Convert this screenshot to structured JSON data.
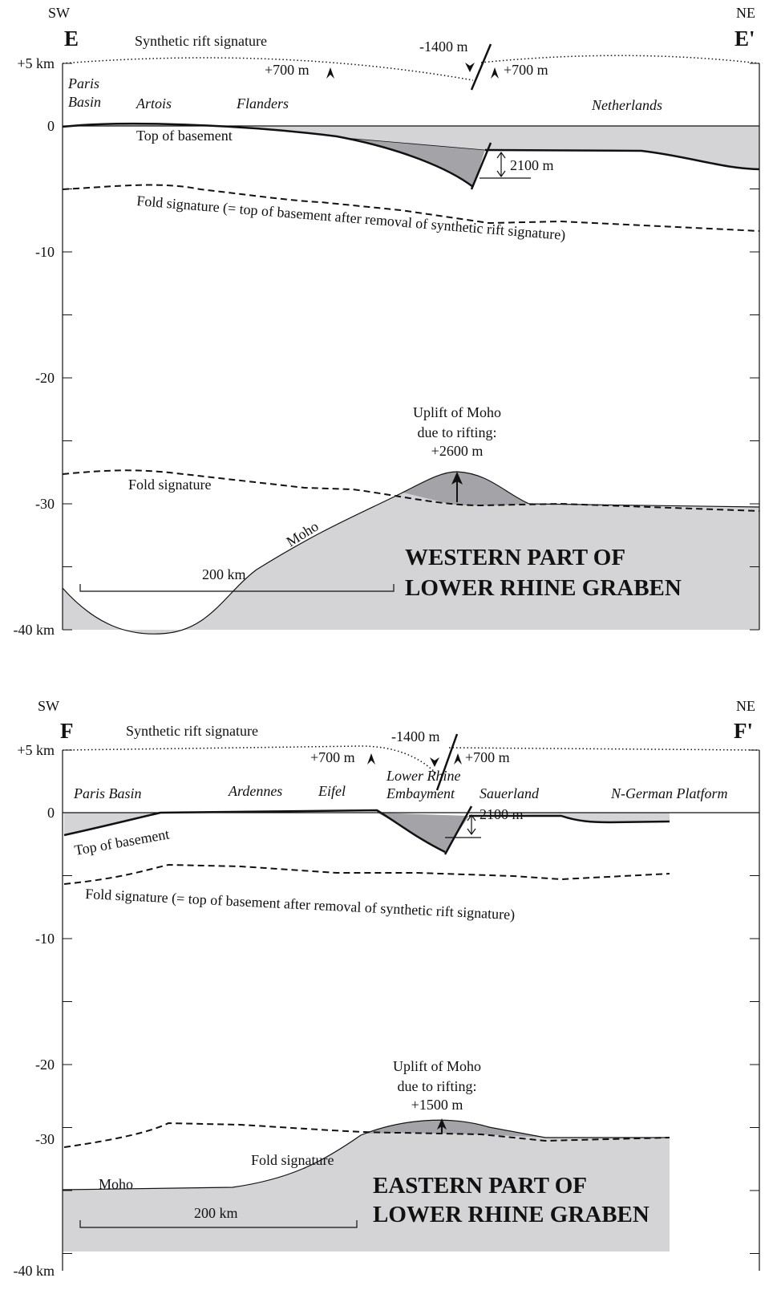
{
  "panels": [
    {
      "sw": "SW",
      "ne": "NE",
      "start": "E",
      "end": "E'",
      "depth_ticks": [
        "+5 km",
        "0",
        "-10",
        "-20",
        "-30",
        "-40 km"
      ],
      "regions": [
        [
          "Paris",
          "Basin"
        ],
        [
          "Artois"
        ],
        [
          "Flanders"
        ],
        [
          "Netherlands"
        ]
      ],
      "rift_label": "Synthetic rift signature",
      "fault_throw": "-1400 m",
      "uplift_left": "+700 m",
      "uplift_right": "+700 m",
      "basement_label": "Top of basement",
      "basement_offset": "2100 m",
      "upper_fold_label": "Fold signature (= top of basement after removal of synthetic rift signature)",
      "moho_uplift": [
        "Uplift of Moho",
        "due to rifting:",
        "+2600 m"
      ],
      "lower_fold_label": "Fold signature",
      "moho_label": "Moho",
      "scale_label": "200 km",
      "title": [
        "WESTERN PART OF",
        "LOWER RHINE GRABEN"
      ]
    },
    {
      "sw": "SW",
      "ne": "NE",
      "start": "F",
      "end": "F'",
      "depth_ticks": [
        "+5 km",
        "0",
        "-10",
        "-20",
        "-30",
        "-40 km"
      ],
      "regions": [
        [
          "Paris Basin"
        ],
        [
          "Ardennes"
        ],
        [
          "Eifel"
        ],
        [
          "Lower Rhine",
          "Embayment"
        ],
        [
          "Sauerland"
        ],
        [
          "N-German Platform"
        ]
      ],
      "rift_label": "Synthetic rift signature",
      "fault_throw": "-1400 m",
      "uplift_left": "+700 m",
      "uplift_right": "+700 m",
      "basement_label": "Top of basement",
      "basement_offset": "2100 m",
      "upper_fold_label": "Fold signature (= top of basement after removal of synthetic rift signature)",
      "moho_uplift": [
        "Uplift of Moho",
        "due to rifting:",
        "+1500 m"
      ],
      "lower_fold_label": "Fold signature",
      "moho_label": "Moho",
      "scale_label": "200 km",
      "title": [
        "EASTERN PART OF",
        "LOWER RHINE GRABEN"
      ]
    }
  ]
}
